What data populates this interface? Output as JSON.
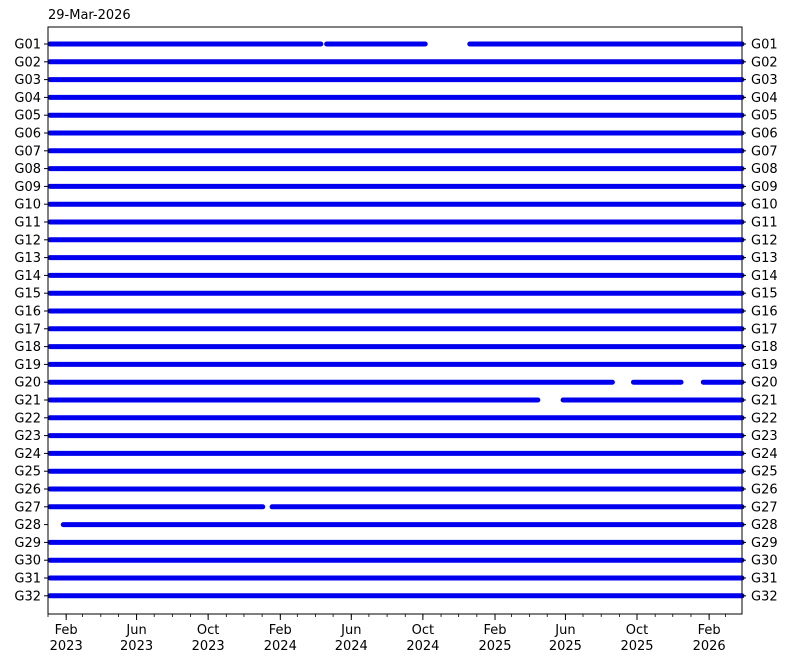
{
  "header": {
    "date_label": "29-Mar-2026"
  },
  "colors": {
    "series": "#0000ee",
    "axis": "#000000",
    "background": "#ffffff"
  },
  "chart_data": {
    "type": "timeline",
    "title": "",
    "xlabel": "",
    "ylabel": "",
    "xlim": [
      "2023-01-01",
      "2026-03-29"
    ],
    "x_ticks": [
      {
        "date": "2023-02-01",
        "label": [
          "Feb",
          "2023"
        ]
      },
      {
        "date": "2023-06-01",
        "label": [
          "Jun",
          "2023"
        ]
      },
      {
        "date": "2023-10-01",
        "label": [
          "Oct",
          "2023"
        ]
      },
      {
        "date": "2024-02-01",
        "label": [
          "Feb",
          "2024"
        ]
      },
      {
        "date": "2024-06-01",
        "label": [
          "Jun",
          "2024"
        ]
      },
      {
        "date": "2024-10-01",
        "label": [
          "Oct",
          "2024"
        ]
      },
      {
        "date": "2025-02-01",
        "label": [
          "Feb",
          "2025"
        ]
      },
      {
        "date": "2025-06-01",
        "label": [
          "Jun",
          "2025"
        ]
      },
      {
        "date": "2025-10-01",
        "label": [
          "Oct",
          "2025"
        ]
      },
      {
        "date": "2026-02-01",
        "label": [
          "Feb",
          "2026"
        ]
      }
    ],
    "y_labels_both_sides": true,
    "series": [
      {
        "name": "G01",
        "segments": [
          [
            "2023-01-01",
            "2024-04-10"
          ],
          [
            "2024-04-20",
            "2024-10-05"
          ],
          [
            "2024-12-20",
            "2026-03-29"
          ]
        ]
      },
      {
        "name": "G02",
        "segments": [
          [
            "2023-01-01",
            "2026-03-29"
          ]
        ]
      },
      {
        "name": "G03",
        "segments": [
          [
            "2023-01-01",
            "2026-03-29"
          ]
        ]
      },
      {
        "name": "G04",
        "segments": [
          [
            "2023-01-01",
            "2026-03-29"
          ]
        ]
      },
      {
        "name": "G05",
        "segments": [
          [
            "2023-01-01",
            "2026-03-29"
          ]
        ]
      },
      {
        "name": "G06",
        "segments": [
          [
            "2023-01-01",
            "2026-03-29"
          ]
        ]
      },
      {
        "name": "G07",
        "segments": [
          [
            "2023-01-01",
            "2026-03-29"
          ]
        ]
      },
      {
        "name": "G08",
        "segments": [
          [
            "2023-01-01",
            "2026-03-29"
          ]
        ]
      },
      {
        "name": "G09",
        "segments": [
          [
            "2023-01-01",
            "2026-03-29"
          ]
        ]
      },
      {
        "name": "G10",
        "segments": [
          [
            "2023-01-01",
            "2026-03-29"
          ]
        ]
      },
      {
        "name": "G11",
        "segments": [
          [
            "2023-01-01",
            "2026-03-29"
          ]
        ]
      },
      {
        "name": "G12",
        "segments": [
          [
            "2023-01-01",
            "2026-03-29"
          ]
        ]
      },
      {
        "name": "G13",
        "segments": [
          [
            "2023-01-01",
            "2026-03-29"
          ]
        ]
      },
      {
        "name": "G14",
        "segments": [
          [
            "2023-01-01",
            "2026-03-29"
          ]
        ]
      },
      {
        "name": "G15",
        "segments": [
          [
            "2023-01-01",
            "2026-03-29"
          ]
        ]
      },
      {
        "name": "G16",
        "segments": [
          [
            "2023-01-01",
            "2026-03-29"
          ]
        ]
      },
      {
        "name": "G17",
        "segments": [
          [
            "2023-01-01",
            "2026-03-29"
          ]
        ]
      },
      {
        "name": "G18",
        "segments": [
          [
            "2023-01-01",
            "2026-03-29"
          ]
        ]
      },
      {
        "name": "G19",
        "segments": [
          [
            "2023-01-01",
            "2026-03-29"
          ]
        ]
      },
      {
        "name": "G20",
        "segments": [
          [
            "2023-01-01",
            "2025-08-20"
          ],
          [
            "2025-09-25",
            "2025-12-15"
          ],
          [
            "2026-01-22",
            "2026-03-29"
          ]
        ]
      },
      {
        "name": "G21",
        "segments": [
          [
            "2023-01-01",
            "2025-04-15"
          ],
          [
            "2025-05-28",
            "2026-03-29"
          ]
        ]
      },
      {
        "name": "G22",
        "segments": [
          [
            "2023-01-01",
            "2026-03-29"
          ]
        ]
      },
      {
        "name": "G23",
        "segments": [
          [
            "2023-01-01",
            "2026-03-29"
          ]
        ]
      },
      {
        "name": "G24",
        "segments": [
          [
            "2023-01-01",
            "2026-03-29"
          ]
        ]
      },
      {
        "name": "G25",
        "segments": [
          [
            "2023-01-01",
            "2026-03-29"
          ]
        ]
      },
      {
        "name": "G26",
        "segments": [
          [
            "2023-01-01",
            "2026-03-29"
          ]
        ]
      },
      {
        "name": "G27",
        "segments": [
          [
            "2023-01-01",
            "2024-01-02"
          ],
          [
            "2024-01-18",
            "2026-03-29"
          ]
        ]
      },
      {
        "name": "G28",
        "segments": [
          [
            "2023-01-27",
            "2026-03-29"
          ]
        ]
      },
      {
        "name": "G29",
        "segments": [
          [
            "2023-01-01",
            "2026-03-29"
          ]
        ]
      },
      {
        "name": "G30",
        "segments": [
          [
            "2023-01-01",
            "2026-03-29"
          ]
        ]
      },
      {
        "name": "G31",
        "segments": [
          [
            "2023-01-01",
            "2026-03-29"
          ]
        ]
      },
      {
        "name": "G32",
        "segments": [
          [
            "2023-01-01",
            "2026-03-29"
          ]
        ]
      }
    ]
  }
}
